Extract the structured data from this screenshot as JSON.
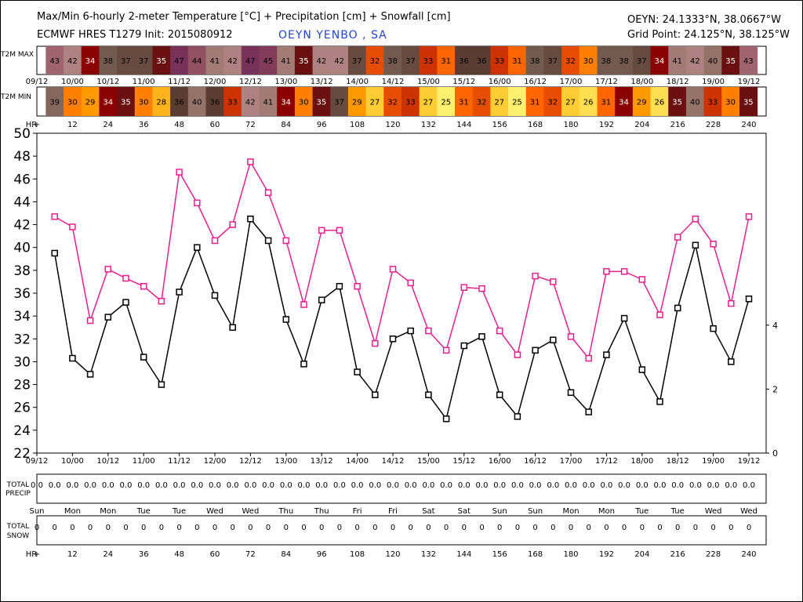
{
  "header": {
    "title": "Max/Min 6-hourly 2-meter Temperature [°C] + Precipitation [cm] + Snowfall [cm]",
    "model": "ECMWF HRES T1279 Init: 2015080912",
    "station": "OEYN YENBO , SA",
    "coords": "OEYN: 24.1333°N, 38.0667°W",
    "grid_point": "Grid Point: 24.125°N, 38.125°W"
  },
  "strip_labels": {
    "t2m_max": "T2M MAX",
    "t2m_min": "T2M MIN",
    "hr": "HR",
    "total_precip": [
      "TOTAL",
      "PRECIP"
    ],
    "total_snow": [
      "TOTAL",
      "SNOW"
    ]
  },
  "time_labels": [
    "09/12",
    "10/00",
    "10/12",
    "11/00",
    "11/12",
    "12/00",
    "12/12",
    "13/00",
    "13/12",
    "14/00",
    "14/12",
    "15/00",
    "15/12",
    "16/00",
    "16/12",
    "17/00",
    "17/12",
    "18/00",
    "18/12",
    "19/00",
    "19/12"
  ],
  "hr_labels": [
    "+",
    "12",
    "24",
    "36",
    "48",
    "60",
    "72",
    "84",
    "96",
    "108",
    "120",
    "132",
    "144",
    "156",
    "168",
    "180",
    "192",
    "204",
    "216",
    "228",
    "240"
  ],
  "day_labels": [
    "Sun",
    "Mon",
    "Mon",
    "Tue",
    "Tue",
    "Wed",
    "Wed",
    "Thu",
    "Thu",
    "Fri",
    "Fri",
    "Sat",
    "Sat",
    "Sun",
    "Sun",
    "Mon",
    "Mon",
    "Tue",
    "Tue",
    "Wed",
    "Wed"
  ],
  "t2m_max_strip": [
    43,
    42,
    34,
    38,
    37,
    37,
    35,
    47,
    44,
    41,
    42,
    47,
    45,
    41,
    35,
    42,
    42,
    37,
    32,
    38,
    37,
    33,
    31,
    36,
    36,
    33,
    31,
    38,
    37,
    32,
    30,
    38,
    38,
    37,
    34,
    41,
    42,
    40,
    35,
    43
  ],
  "t2m_min_strip": [
    39,
    30,
    29,
    34,
    35,
    30,
    28,
    36,
    40,
    36,
    33,
    42,
    41,
    34,
    30,
    35,
    37,
    29,
    27,
    32,
    33,
    27,
    25,
    31,
    32,
    27,
    25,
    31,
    32,
    27,
    26,
    31,
    34,
    29,
    26,
    35,
    40,
    33,
    30,
    35
  ],
  "precip_values": [
    "0.0",
    "0.0",
    "0.0",
    "0.0",
    "0.0",
    "0.0",
    "0.0",
    "0.0",
    "0.0",
    "0.0",
    "0.0",
    "0.0",
    "0.0",
    "0.0",
    "0.0",
    "0.0",
    "0.0",
    "0.0",
    "0.0",
    "0.0",
    "0.0",
    "0.0",
    "0.0",
    "0.0",
    "0.0",
    "0.0",
    "0.0",
    "0.0",
    "0.0",
    "0.0",
    "0.0",
    "0.0",
    "0.0",
    "0.0",
    "0.0",
    "0.0",
    "0.0",
    "0.0",
    "0.0",
    "0.0",
    "0.0"
  ],
  "snow_values": [
    "0",
    "0",
    "0",
    "0",
    "0",
    "0",
    "0",
    "0",
    "0",
    "0",
    "0",
    "0",
    "0",
    "0",
    "0",
    "0",
    "0",
    "0",
    "0",
    "0",
    "0",
    "0",
    "0",
    "0",
    "0",
    "0",
    "0",
    "0",
    "0",
    "0",
    "0",
    "0",
    "0",
    "0",
    "0",
    "0",
    "0",
    "0",
    "0",
    "0",
    "0"
  ],
  "colors": {
    "max_series": "#e0208f",
    "min_series": "#000000"
  },
  "chart_data": {
    "type": "line",
    "title": "Max/Min 6-hourly 2-meter Temperature [°C] + Precipitation [cm] + Snowfall [cm]",
    "x": [
      6,
      12,
      18,
      24,
      30,
      36,
      42,
      48,
      54,
      60,
      66,
      72,
      78,
      84,
      90,
      96,
      102,
      108,
      114,
      120,
      126,
      132,
      138,
      144,
      150,
      156,
      162,
      168,
      174,
      180,
      186,
      192,
      198,
      204,
      210,
      216,
      222,
      228,
      234,
      240
    ],
    "xlabel": "HR",
    "ylim": [
      22,
      50
    ],
    "yticks": [
      22,
      24,
      26,
      28,
      30,
      32,
      34,
      36,
      38,
      40,
      42,
      44,
      46,
      48,
      50
    ],
    "y2lim": [
      0,
      10
    ],
    "y2ticks": [
      0,
      2,
      4
    ],
    "grid": false,
    "series": [
      {
        "values": [
          42.7,
          41.8,
          33.6,
          38.1,
          37.3,
          36.6,
          35.3,
          46.6,
          43.9,
          40.6,
          42.0,
          47.5,
          44.8,
          40.6,
          35.0,
          41.5,
          41.5,
          36.6,
          31.6,
          38.1,
          36.9,
          32.7,
          31.0,
          36.5,
          36.4,
          32.7,
          30.6,
          37.5,
          37.0,
          32.2,
          30.3,
          37.9,
          37.9,
          37.2,
          34.1,
          40.9,
          42.5,
          40.3,
          35.1,
          42.7
        ]
      },
      {
        "values": [
          39.5,
          30.3,
          28.9,
          33.9,
          35.2,
          30.4,
          28.0,
          36.1,
          40.0,
          35.8,
          33.0,
          42.5,
          40.6,
          33.7,
          29.8,
          35.4,
          36.6,
          29.1,
          27.1,
          32.0,
          32.7,
          27.1,
          25.0,
          31.4,
          32.2,
          27.1,
          25.2,
          31.0,
          31.9,
          27.3,
          25.6,
          30.6,
          33.8,
          29.3,
          26.5,
          34.7,
          40.2,
          32.9,
          30.0,
          35.5
        ]
      }
    ],
    "precip_total": [],
    "snow_total": []
  }
}
